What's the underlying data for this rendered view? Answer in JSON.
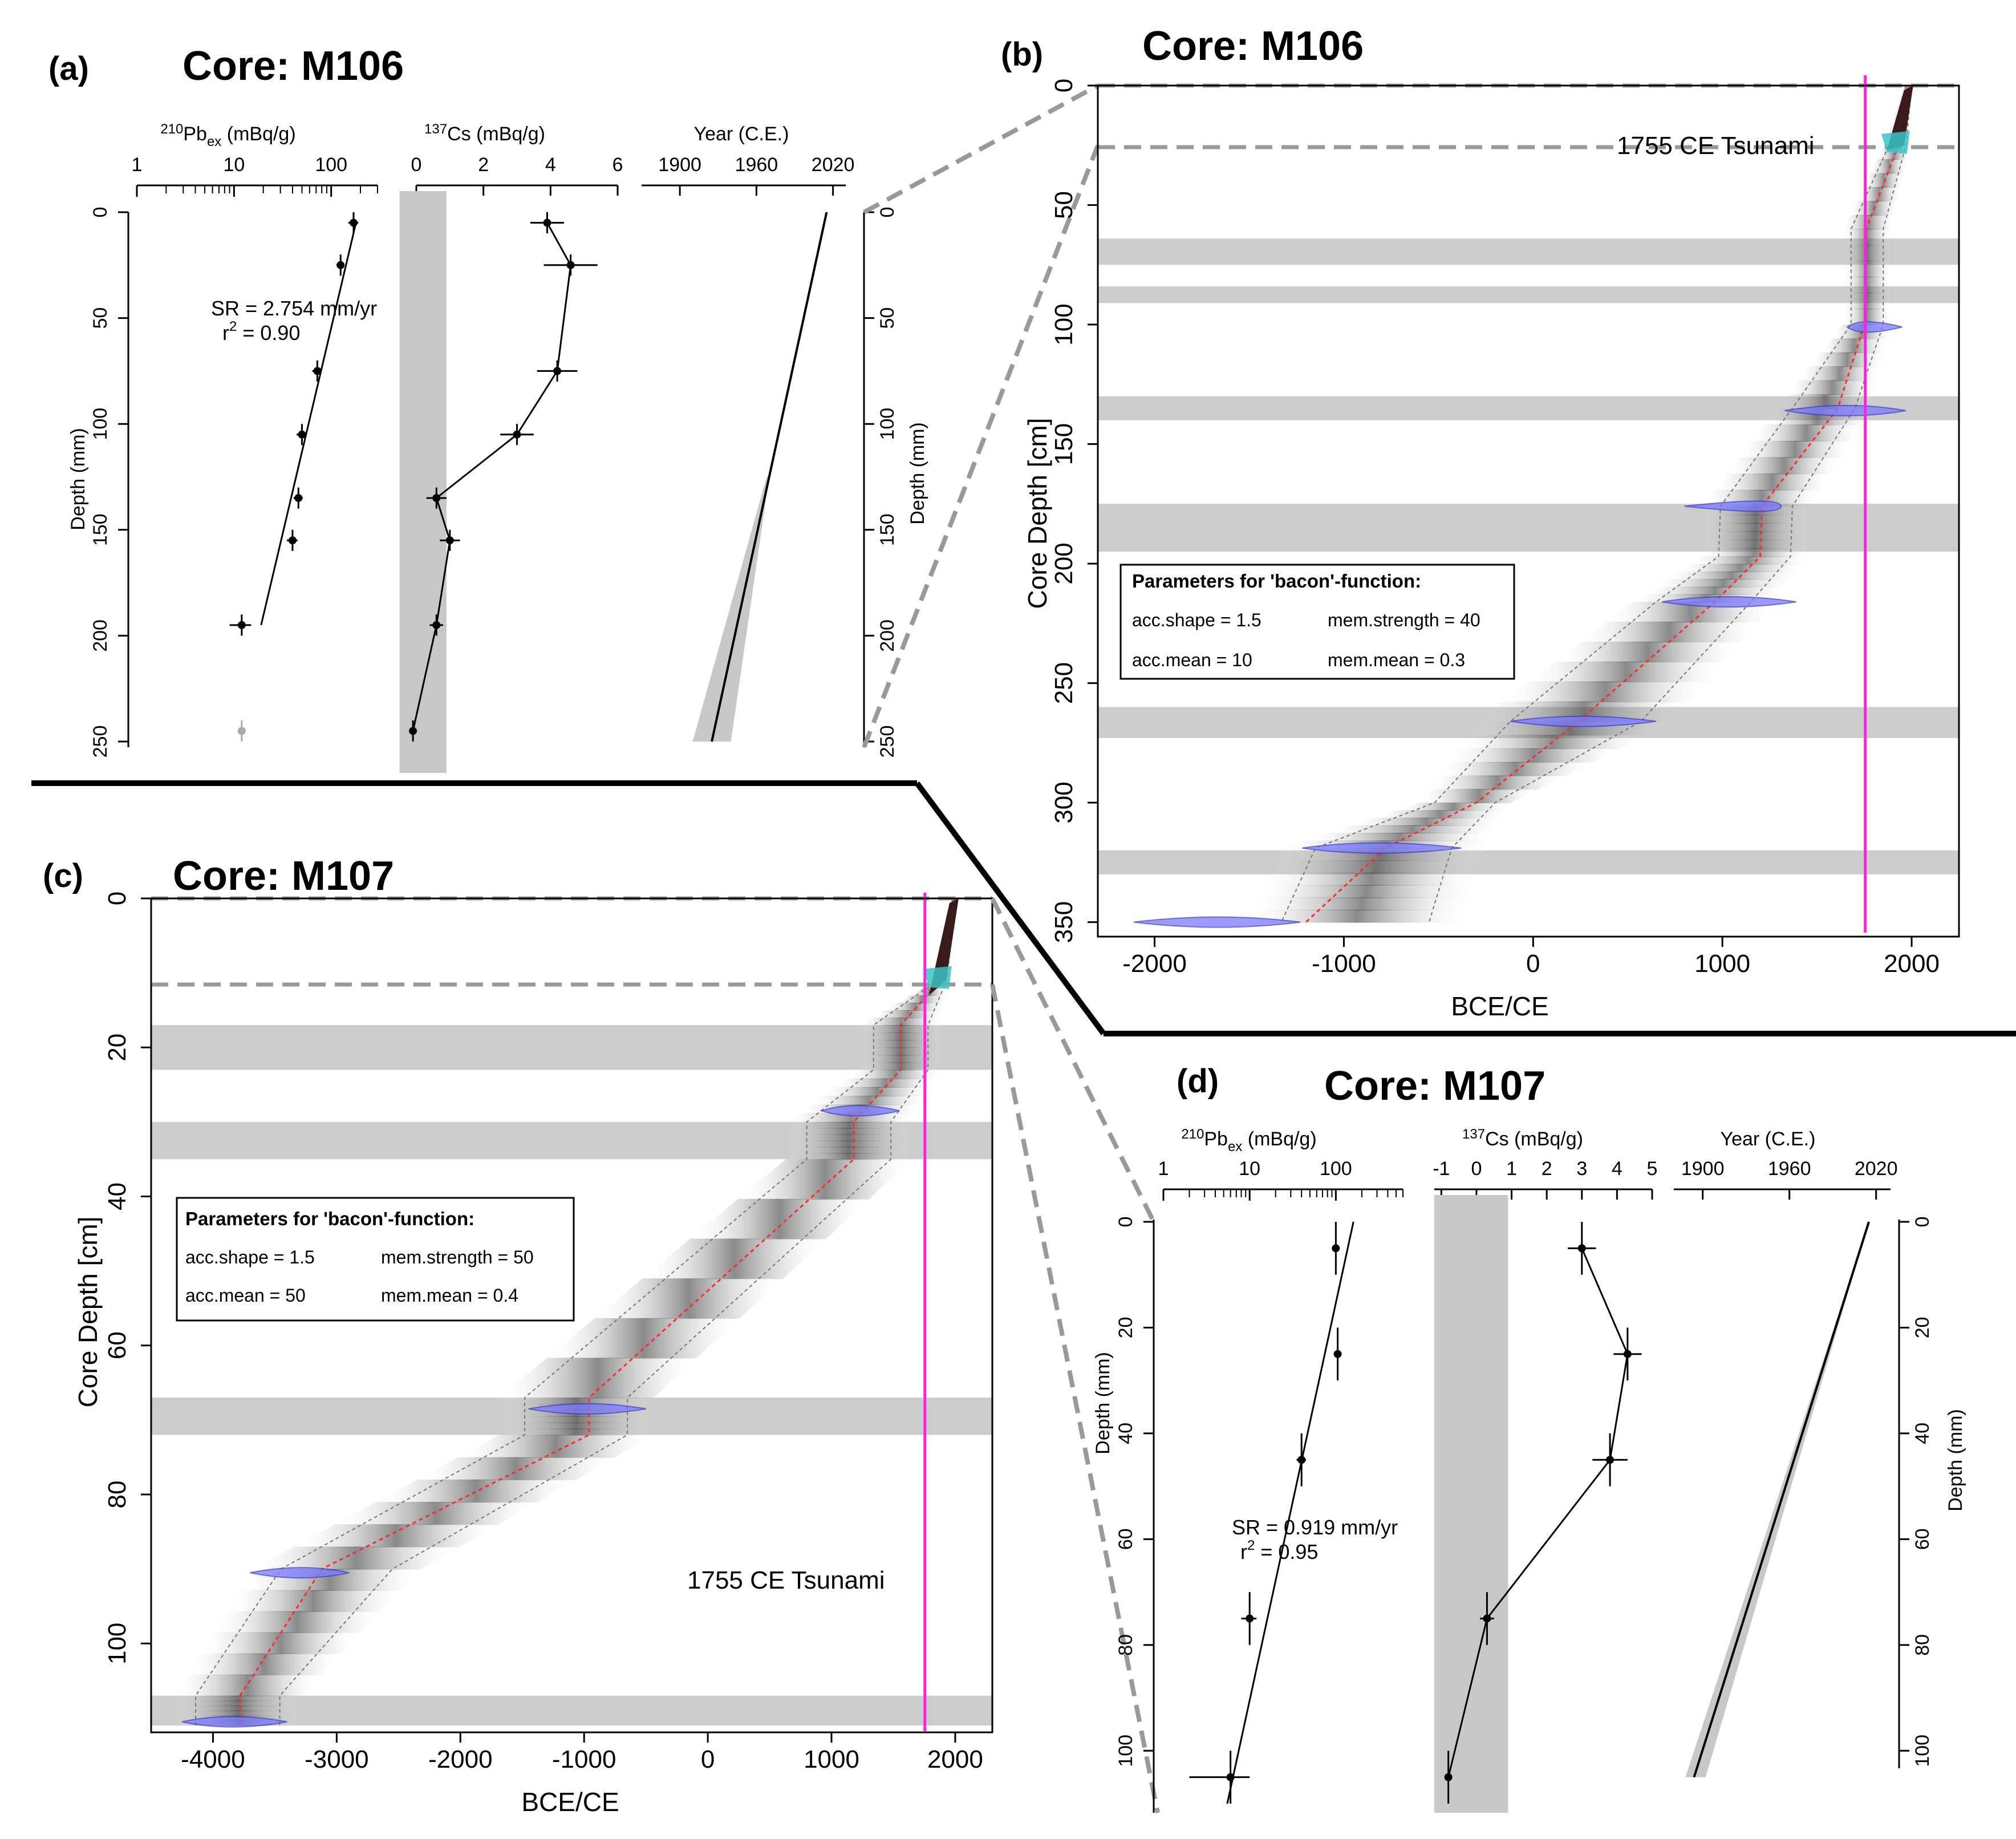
{
  "chart_data": [
    {
      "id": "a",
      "panel_label": "(a)",
      "title": "Core: M106",
      "type": "scatter",
      "subplots": [
        {
          "name": "pb210",
          "xlabel_iso": "210",
          "xlabel_main": "Pb",
          "xlabel_sub": "ex",
          "xlabel_unit": " (mBq/g)",
          "x_scale": "log",
          "xlim": [
            1,
            300
          ],
          "x_ticks": [
            1,
            10,
            100
          ],
          "ylabel": "Depth (mm)",
          "ylim": [
            0,
            250
          ],
          "y_ticks": [
            0,
            50,
            100,
            150,
            200,
            250
          ],
          "points": [
            {
              "depth": 5,
              "value": 170,
              "depth_err": 5,
              "value_err": 20
            },
            {
              "depth": 25,
              "value": 125,
              "depth_err": 5,
              "value_err": 12
            },
            {
              "depth": 75,
              "value": 72,
              "depth_err": 5,
              "value_err": 8
            },
            {
              "depth": 105,
              "value": 50,
              "depth_err": 5,
              "value_err": 6
            },
            {
              "depth": 135,
              "value": 46,
              "depth_err": 5,
              "value_err": 5
            },
            {
              "depth": 155,
              "value": 40,
              "depth_err": 5,
              "value_err": 5
            },
            {
              "depth": 195,
              "value": 12,
              "depth_err": 5,
              "value_err": 3
            }
          ],
          "excluded_point": {
            "depth": 245,
            "value": 12
          },
          "fit_line": {
            "depth": [
              5,
              195
            ],
            "value": [
              180,
              19
            ]
          },
          "annotation": {
            "sr": "SR = 2.754 mm/yr",
            "r2_prefix": "r",
            "r2_sup": "2",
            "r2_suffix": " = 0.90"
          }
        },
        {
          "name": "cs137",
          "xlabel_iso": "137",
          "xlabel_main": "Cs",
          "xlabel_unit": " (mBq/g)",
          "xlim": [
            -0.5,
            6
          ],
          "x_ticks": [
            0,
            2,
            4,
            6
          ],
          "detection_band": [
            -0.5,
            0.9
          ],
          "points": [
            {
              "depth": 5,
              "value": 3.9,
              "depth_err": 5,
              "value_err": 0.5
            },
            {
              "depth": 25,
              "value": 4.6,
              "depth_err": 5,
              "value_err": 0.8
            },
            {
              "depth": 75,
              "value": 4.2,
              "depth_err": 5,
              "value_err": 0.6
            },
            {
              "depth": 105,
              "value": 3.0,
              "depth_err": 5,
              "value_err": 0.5
            },
            {
              "depth": 135,
              "value": 0.6,
              "depth_err": 5,
              "value_err": 0.3
            },
            {
              "depth": 155,
              "value": 1.0,
              "depth_err": 5,
              "value_err": 0.3
            },
            {
              "depth": 195,
              "value": 0.6,
              "depth_err": 5,
              "value_err": 0.2
            },
            {
              "depth": 245,
              "value": -0.1,
              "depth_err": 5,
              "value_err": 0.1
            }
          ]
        },
        {
          "name": "age",
          "xlabel": "Year (C.E.)",
          "xlim": [
            1870,
            2030
          ],
          "x_ticks": [
            1900,
            1960,
            2020
          ],
          "ylabel": "Depth (mm)",
          "ylim": [
            0,
            250
          ],
          "y_ticks": [
            0,
            50,
            100,
            150,
            200,
            250
          ],
          "line": {
            "depth": [
              0,
              250
            ],
            "year": [
              2015,
              1925
            ]
          },
          "band": {
            "depth": [
              [
                125,
                250
              ],
              [
                125,
                250
              ]
            ],
            "year": [
              [
                1968,
                1910
              ],
              [
                1970,
                1940
              ]
            ]
          }
        }
      ]
    },
    {
      "id": "b",
      "panel_label": "(b)",
      "title": "Core: M106",
      "type": "line",
      "xlabel": "BCE/CE",
      "ylabel": "Core Depth [cm]",
      "xlim": [
        -2300,
        2250
      ],
      "ylim": [
        0,
        352
      ],
      "x_ticks": [
        -2000,
        -1000,
        0,
        1000,
        2000
      ],
      "y_ticks": [
        0,
        50,
        100,
        150,
        200,
        250,
        300,
        350
      ],
      "tsunami": {
        "year": 1755,
        "label": "1755 CE Tsunami"
      },
      "event_layer_depths": [
        [
          64,
          75
        ],
        [
          84,
          91
        ],
        [
          130,
          140
        ],
        [
          175,
          195
        ],
        [
          260,
          273
        ],
        [
          320,
          330
        ]
      ],
      "age_model": {
        "depth": [
          0,
          25,
          60,
          100,
          135,
          176,
          197,
          216,
          266,
          300,
          319,
          350
        ],
        "median": [
          1990,
          1930,
          1760,
          1750,
          1610,
          1210,
          1200,
          960,
          240,
          -300,
          -780,
          -1200
        ],
        "lower": [
          1970,
          1880,
          1680,
          1680,
          1370,
          990,
          980,
          650,
          -120,
          -520,
          -1150,
          -1330
        ],
        "upper": [
          2000,
          1970,
          1850,
          1850,
          1700,
          1370,
          1360,
          1150,
          570,
          -200,
          -430,
          -550
        ]
      },
      "dates": [
        {
          "depth": 101,
          "year": 1730,
          "min": 1660,
          "max": 1950
        },
        {
          "depth": 136,
          "year": 1660,
          "min": 1330,
          "max": 1970
        },
        {
          "depth": 176,
          "year": 1310,
          "min": 800,
          "max": 1310
        },
        {
          "depth": 216,
          "year": 1030,
          "min": 680,
          "max": 1390
        },
        {
          "depth": 266,
          "year": 250,
          "min": -120,
          "max": 650
        },
        {
          "depth": 319,
          "year": -830,
          "min": -1220,
          "max": -380
        },
        {
          "depth": 350,
          "year": -1660,
          "min": -2110,
          "max": -1230
        }
      ],
      "params": {
        "heading": "Parameters for 'bacon'-function:",
        "acc_shape": "acc.shape = 1.5",
        "mem_strength": "mem.strength = 40",
        "acc_mean": "acc.mean = 10",
        "mem_mean": "mem.mean = 0.3"
      }
    },
    {
      "id": "c",
      "panel_label": "(c)",
      "title": "Core: M107",
      "type": "line",
      "xlabel": "BCE/CE",
      "ylabel": "Core Depth [cm]",
      "xlim": [
        -4500,
        2300
      ],
      "ylim": [
        0,
        111
      ],
      "x_ticks": [
        -4000,
        -3000,
        -2000,
        -1000,
        0,
        1000,
        2000
      ],
      "y_ticks": [
        0,
        20,
        40,
        60,
        80,
        100
      ],
      "tsunami": {
        "year": 1755,
        "label": "1755 CE Tsunami"
      },
      "event_layer_depths": [
        [
          17,
          23
        ],
        [
          30,
          35
        ],
        [
          67,
          72
        ],
        [
          107,
          111
        ]
      ],
      "age_model": {
        "depth": [
          0,
          11,
          17,
          23,
          30,
          35,
          67,
          72,
          90,
          107,
          111
        ],
        "median": [
          2000,
          1880,
          1560,
          1560,
          1180,
          1180,
          -960,
          -960,
          -3120,
          -3780,
          -3780
        ],
        "lower": [
          1980,
          1860,
          1340,
          1340,
          800,
          800,
          -1480,
          -1480,
          -3450,
          -4140,
          -4140
        ],
        "upper": [
          2010,
          1930,
          1780,
          1780,
          1480,
          1480,
          -650,
          -650,
          -2550,
          -3460,
          -3460
        ]
      },
      "dates": [
        {
          "depth": 28.5,
          "year": 1190,
          "min": 920,
          "max": 1550
        },
        {
          "depth": 68.5,
          "year": -980,
          "min": -1450,
          "max": -500
        },
        {
          "depth": 90.5,
          "year": -3280,
          "min": -3700,
          "max": -2900
        },
        {
          "depth": 110.5,
          "year": -3860,
          "min": -4250,
          "max": -3400
        }
      ],
      "params": {
        "heading": "Parameters for 'bacon'-function:",
        "acc_shape": "acc.shape = 1.5",
        "mem_strength": "mem.strength = 50",
        "acc_mean": "acc.mean = 50",
        "mem_mean": "mem.mean = 0.4"
      }
    },
    {
      "id": "d",
      "panel_label": "(d)",
      "title": "Core: M107",
      "type": "scatter",
      "subplots": [
        {
          "name": "pb210",
          "xlabel_iso": "210",
          "xlabel_main": "Pb",
          "xlabel_sub": "ex",
          "xlabel_unit": " (mBq/g)",
          "x_scale": "log",
          "xlim": [
            1,
            600
          ],
          "x_ticks": [
            1,
            10,
            100
          ],
          "ylabel": "Depth (mm)",
          "ylim": [
            0,
            110
          ],
          "y_ticks": [
            0,
            20,
            40,
            60,
            80,
            100
          ],
          "points": [
            {
              "depth": 5,
              "value": 100,
              "depth_err": 5,
              "value_err": 10
            },
            {
              "depth": 25,
              "value": 105,
              "depth_err": 5,
              "value_err": 10
            },
            {
              "depth": 45,
              "value": 40,
              "depth_err": 5,
              "value_err": 5
            },
            {
              "depth": 75,
              "value": 10,
              "depth_err": 5,
              "value_err": 2
            },
            {
              "depth": 105,
              "value": 6,
              "depth_err": 5,
              "value_err": 4
            }
          ],
          "fit_line": {
            "depth": [
              0,
              110
            ],
            "value": [
              160,
              5.5
            ]
          },
          "annotation": {
            "sr": "SR = 0.919 mm/yr",
            "r2_prefix": "r",
            "r2_sup": "2",
            "r2_suffix": " = 0.95"
          }
        },
        {
          "name": "cs137",
          "xlabel_iso": "137",
          "xlabel_main": "Cs",
          "xlabel_unit": " (mBq/g)",
          "xlim": [
            -1.2,
            5
          ],
          "x_ticks": [
            -1,
            0,
            1,
            2,
            3,
            4,
            5
          ],
          "detection_band": [
            -1.2,
            0.9
          ],
          "points": [
            {
              "depth": 5,
              "value": 3.0,
              "depth_err": 5,
              "value_err": 0.4
            },
            {
              "depth": 25,
              "value": 4.3,
              "depth_err": 5,
              "value_err": 0.4
            },
            {
              "depth": 45,
              "value": 3.8,
              "depth_err": 5,
              "value_err": 0.5
            },
            {
              "depth": 75,
              "value": 0.3,
              "depth_err": 5,
              "value_err": 0.2
            },
            {
              "depth": 105,
              "value": -0.8,
              "depth_err": 5,
              "value_err": 0.1
            }
          ]
        },
        {
          "name": "age",
          "xlabel": "Year (C.E.)",
          "xlim": [
            1880,
            2030
          ],
          "x_ticks": [
            1900,
            1960,
            2020
          ],
          "ylabel": "Depth (mm)",
          "ylim": [
            0,
            110
          ],
          "y_ticks": [
            0,
            20,
            40,
            60,
            80,
            100
          ],
          "line": {
            "depth": [
              0,
              105
            ],
            "year": [
              2015,
              1894
            ]
          },
          "band": {
            "depth": [
              [
                0,
                105
              ],
              [
                0,
                105
              ]
            ],
            "year": [
              [
                2015,
                1888
              ],
              [
                2015,
                1902
              ]
            ]
          }
        }
      ]
    }
  ]
}
